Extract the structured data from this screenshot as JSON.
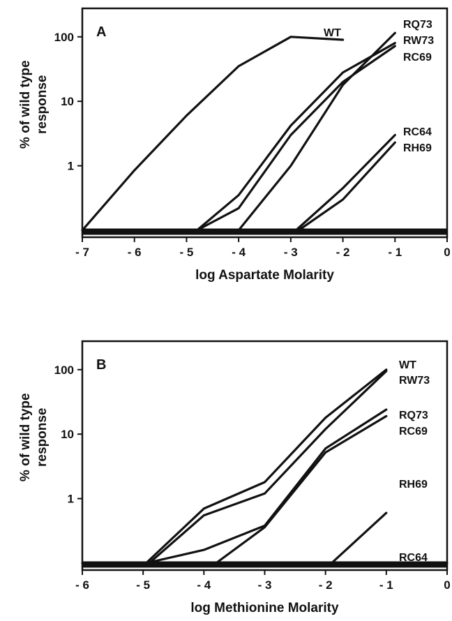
{
  "colors": {
    "ink": "#111111",
    "background": "#ffffff"
  },
  "chart_data": [
    {
      "type": "line",
      "panel_label": "A",
      "xlabel": "log Aspartate Molarity",
      "ylabel_lines": [
        "% of wild type",
        "response"
      ],
      "xlim": [
        -7,
        0
      ],
      "ylim": [
        0.1,
        250
      ],
      "yscale": "log",
      "grid": false,
      "xticks": [
        -7,
        -6,
        -5,
        -4,
        -3,
        -2,
        -1,
        0
      ],
      "xtick_labels": [
        "- 7",
        "- 6",
        "- 5",
        "- 4",
        "- 3",
        "- 2",
        "- 1",
        "0"
      ],
      "yticks": [
        1,
        10,
        100
      ],
      "ytick_labels": [
        "1",
        "10",
        "100"
      ],
      "series": [
        {
          "name": "WT",
          "x": [
            -7,
            -6,
            -5,
            -4,
            -3,
            -2
          ],
          "y": [
            0.1,
            0.85,
            6,
            35,
            100,
            90
          ]
        },
        {
          "name": "RQ73",
          "x": [
            -4,
            -3,
            -2,
            -1
          ],
          "y": [
            0.1,
            1.0,
            18,
            115
          ]
        },
        {
          "name": "RW73",
          "x": [
            -4.8,
            -4,
            -3,
            -2,
            -1
          ],
          "y": [
            0.1,
            0.35,
            4.2,
            28,
            80
          ]
        },
        {
          "name": "RC69",
          "x": [
            -4.8,
            -4,
            -3,
            -2,
            -1
          ],
          "y": [
            0.1,
            0.22,
            3.0,
            20,
            72
          ]
        },
        {
          "name": "RC64",
          "x": [
            -2.9,
            -2,
            -1
          ],
          "y": [
            0.1,
            0.45,
            3.0
          ]
        },
        {
          "name": "RH69",
          "x": [
            -2.85,
            -2,
            -1
          ],
          "y": [
            0.1,
            0.3,
            2.3
          ]
        }
      ]
    },
    {
      "type": "line",
      "panel_label": "B",
      "xlabel": "log Methionine Molarity",
      "ylabel_lines": [
        "% of wild type",
        "response"
      ],
      "xlim": [
        -6,
        0
      ],
      "ylim": [
        0.1,
        250
      ],
      "yscale": "log",
      "grid": false,
      "xticks": [
        -6,
        -5,
        -4,
        -3,
        -2,
        -1,
        0
      ],
      "xtick_labels": [
        "- 6",
        "- 5",
        "- 4",
        "- 3",
        "- 2",
        "- 1",
        "0"
      ],
      "yticks": [
        1,
        10,
        100
      ],
      "ytick_labels": [
        "1",
        "10",
        "100"
      ],
      "series": [
        {
          "name": "WT",
          "x": [
            -4.95,
            -4,
            -3,
            -2,
            -1
          ],
          "y": [
            0.1,
            0.7,
            1.8,
            18,
            100
          ]
        },
        {
          "name": "RW73",
          "x": [
            -4.9,
            -4,
            -3,
            -2,
            -1
          ],
          "y": [
            0.1,
            0.55,
            1.2,
            12,
            95
          ]
        },
        {
          "name": "RQ73",
          "x": [
            -4.95,
            -4,
            -3,
            -2,
            -1
          ],
          "y": [
            0.1,
            0.16,
            0.38,
            6,
            24
          ]
        },
        {
          "name": "RC69",
          "x": [
            -3.8,
            -3,
            -2,
            -1
          ],
          "y": [
            0.1,
            0.36,
            5.2,
            19
          ]
        },
        {
          "name": "RH69",
          "x": [
            -1.9,
            -1
          ],
          "y": [
            0.1,
            0.6
          ]
        },
        {
          "name": "RC64",
          "x": [
            -6,
            0
          ],
          "y": [
            0.1,
            0.1
          ]
        }
      ]
    }
  ]
}
